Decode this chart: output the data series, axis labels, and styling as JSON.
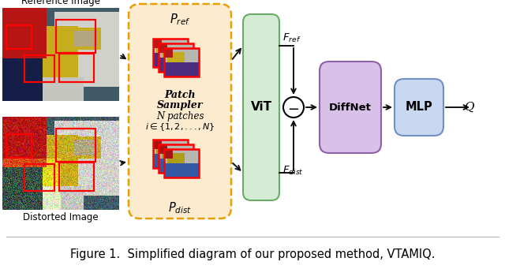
{
  "bg_color": "#ffffff",
  "caption": "Figure 1.  Simplified diagram of our proposed method, VTAMIQ.",
  "caption_fontsize": 10.5,
  "ref_label": "Reference Image",
  "dist_label": "Distorted Image",
  "patch_sampler_bg": "#fdebd0",
  "patch_sampler_border": "#e8a000",
  "vit_color_face": "#d4ecd4",
  "vit_color_edge": "#6aaa6a",
  "diffnet_color_face": "#d8c0e8",
  "diffnet_color_edge": "#9060a8",
  "mlp_color_face": "#c8d8f0",
  "mlp_color_edge": "#7090c0",
  "arrow_color": "#111111"
}
